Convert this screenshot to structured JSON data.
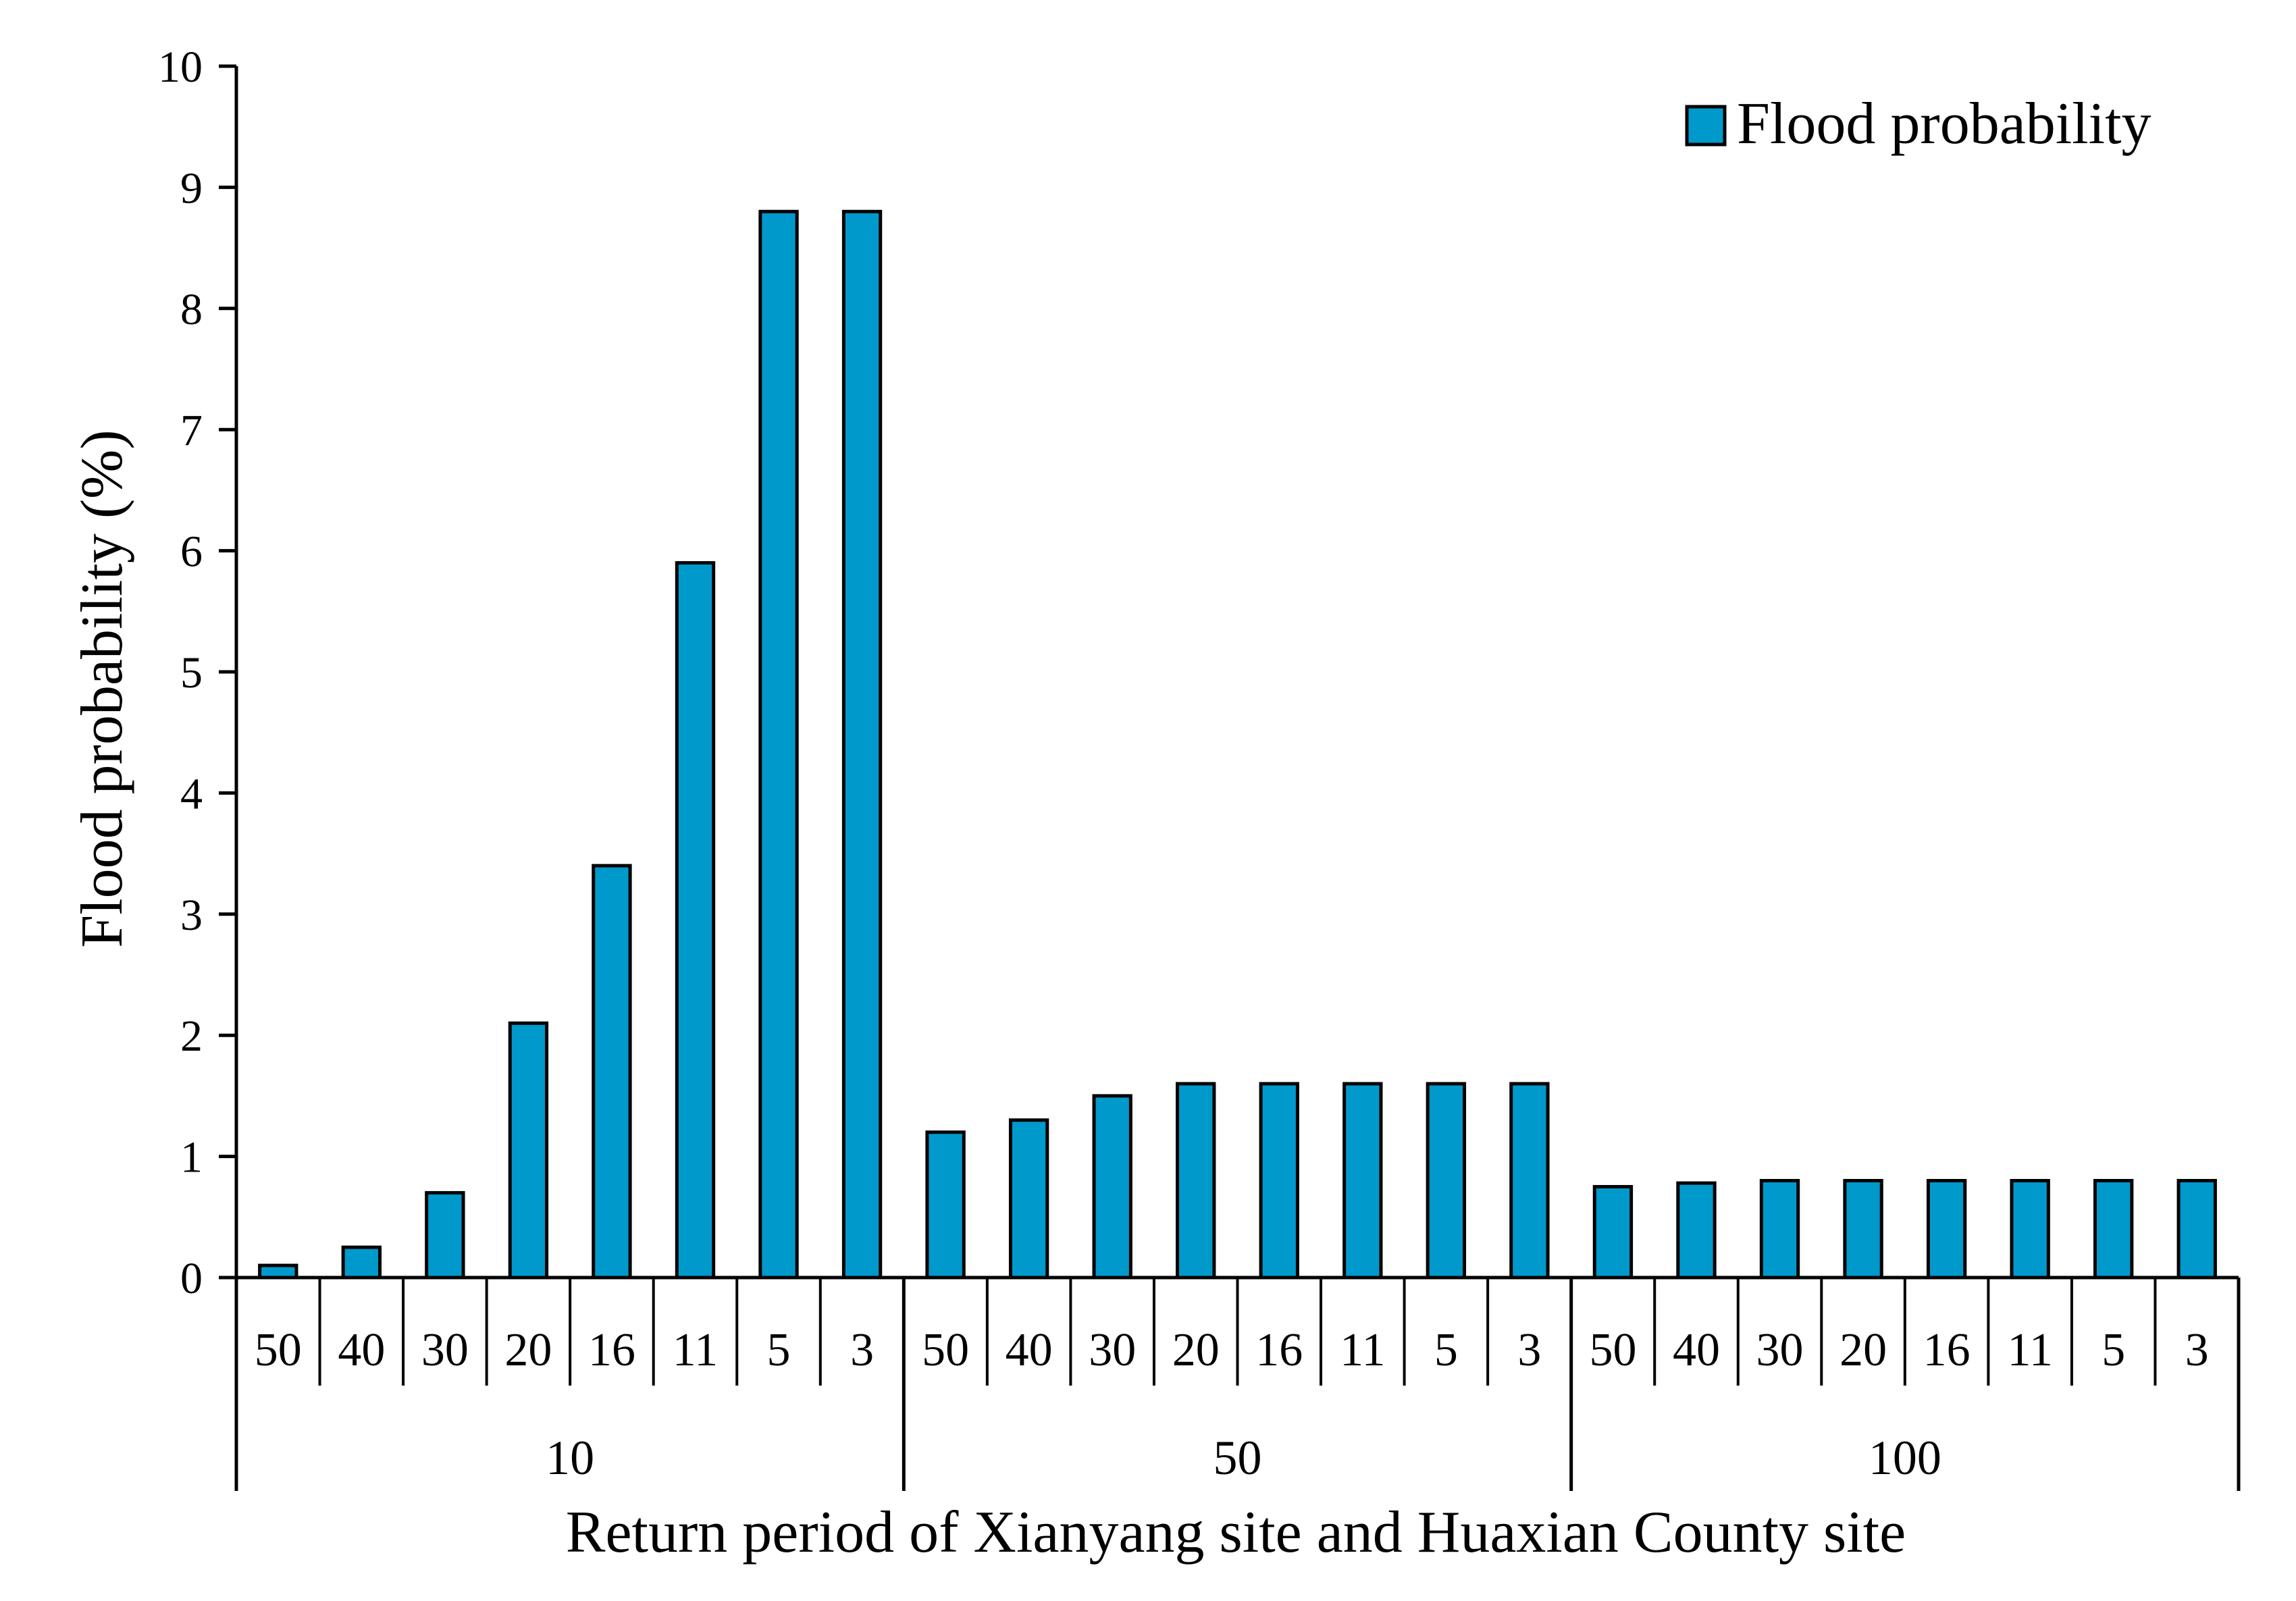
{
  "chart_data": {
    "type": "bar",
    "title": "",
    "xlabel": "Return period of Xianyang site and Huaxian County site",
    "ylabel": "Flood probability (%)",
    "ylim": [
      0,
      10
    ],
    "y_ticks": [
      "0",
      "1",
      "2",
      "3",
      "4",
      "5",
      "6",
      "7",
      "8",
      "9",
      "10"
    ],
    "grid": false,
    "legend_position": "top-right",
    "bar_color": "#0099CC",
    "groups": [
      {
        "label": "10",
        "categories": [
          "50",
          "40",
          "30",
          "20",
          "16",
          "11",
          "5",
          "3"
        ]
      },
      {
        "label": "50",
        "categories": [
          "50",
          "40",
          "30",
          "20",
          "16",
          "11",
          "5",
          "3"
        ]
      },
      {
        "label": "100",
        "categories": [
          "50",
          "40",
          "30",
          "20",
          "16",
          "11",
          "5",
          "3"
        ]
      }
    ],
    "series": [
      {
        "name": "Flood probability",
        "values": [
          0.1,
          0.25,
          0.7,
          2.1,
          3.4,
          5.9,
          8.8,
          8.8,
          1.2,
          1.3,
          1.5,
          1.6,
          1.6,
          1.6,
          1.6,
          1.6,
          0.75,
          0.78,
          0.8,
          0.8,
          0.8,
          0.8,
          0.8,
          0.8
        ]
      }
    ]
  }
}
